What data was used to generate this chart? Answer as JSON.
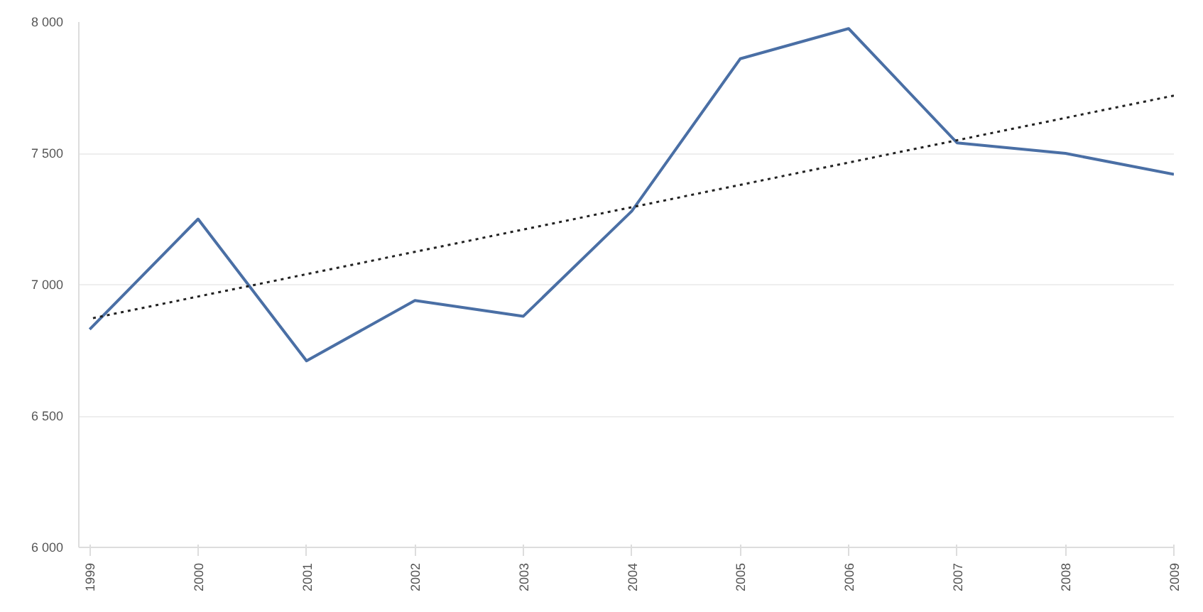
{
  "chart_data": {
    "type": "line",
    "x": [
      1999,
      2000,
      2001,
      2002,
      2003,
      2004,
      2005,
      2006,
      2007,
      2008,
      2009
    ],
    "series": [
      {
        "color": "#4a6fa5",
        "values": [
          6830,
          7250,
          6710,
          6940,
          6880,
          7280,
          7860,
          7975,
          7540,
          7500,
          7420
        ],
        "line_style": "solid"
      },
      {
        "type": "line",
        "x": [
          1999,
          2009
        ],
        "color": "#222222",
        "values": [
          6870,
          7720
        ],
        "line_style": "dotted"
      }
    ],
    "xlim": [
      1998.9,
      2009
    ],
    "xticks": [
      1999,
      2000,
      2001,
      2002,
      2003,
      2004,
      2005,
      2006,
      2007,
      2008,
      2009
    ],
    "ylim": [
      6000,
      8000
    ],
    "yticks": [
      {
        "value": 6000,
        "label": "6 000"
      },
      {
        "value": 6500,
        "label": "6 500"
      },
      {
        "value": 7000,
        "label": "7 000"
      },
      {
        "value": 7500,
        "label": "7 500"
      },
      {
        "value": 8000,
        "label": "8 000"
      }
    ],
    "grid": "y",
    "marker": "none"
  }
}
